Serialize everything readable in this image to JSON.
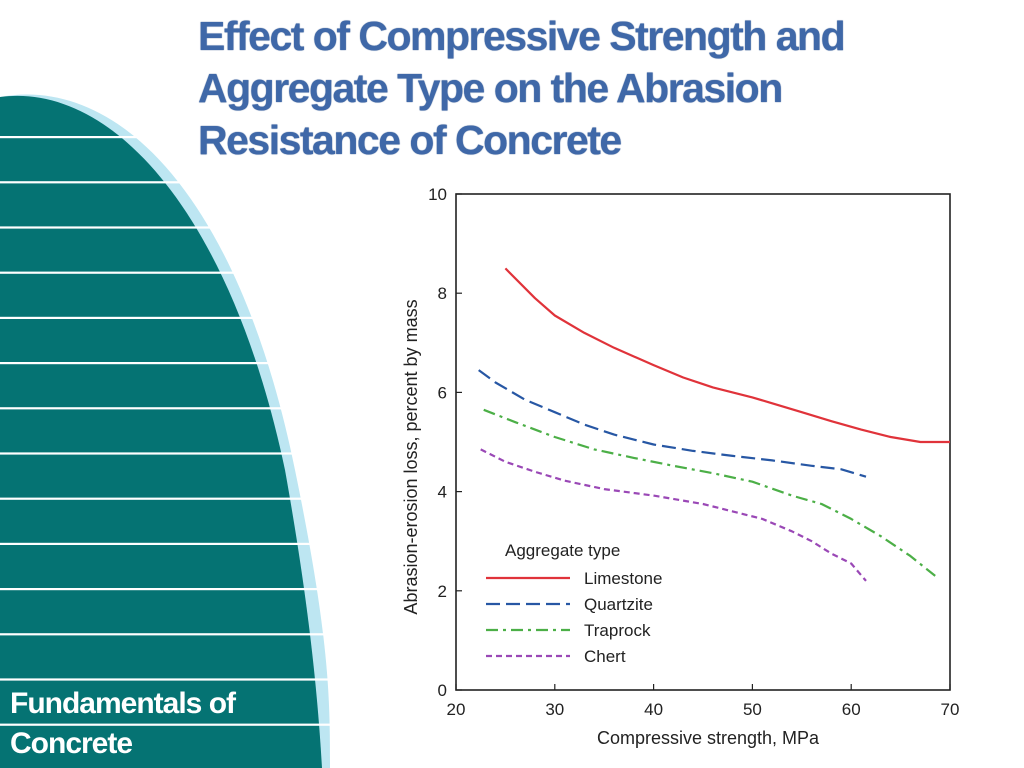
{
  "slide": {
    "title_lines": [
      "Effect of Compressive Strength and",
      "Aggregate Type on the Abrasion",
      "Resistance of Concrete"
    ],
    "footer_lines": [
      "Fundamentals of",
      "Concrete"
    ]
  },
  "colors": {
    "title": "#3f68a8",
    "panel_teal": "#057373",
    "panel_light": "#bde6f2",
    "limestone": "#e0333a",
    "quartzite": "#2757a4",
    "traprock": "#4caf47",
    "chert": "#9a48b6"
  },
  "chart_data": {
    "type": "line",
    "title": "",
    "xlabel": "Compressive strength, MPa",
    "ylabel": "Abrasion-erosion loss, percent by mass",
    "xlim": [
      20,
      70
    ],
    "ylim": [
      0,
      10
    ],
    "xticks": [
      "20",
      "30",
      "40",
      "50",
      "60",
      "70"
    ],
    "yticks": [
      "0",
      "2",
      "4",
      "6",
      "8",
      "10"
    ],
    "grid": false,
    "legend": {
      "title": "Aggregate type",
      "placement": "bottom-left"
    },
    "series": [
      {
        "name": "Limestone",
        "style": "solid",
        "color": "#e0333a",
        "points": [
          [
            25,
            8.5
          ],
          [
            28,
            7.9
          ],
          [
            30,
            7.55
          ],
          [
            33,
            7.2
          ],
          [
            36,
            6.9
          ],
          [
            40,
            6.55
          ],
          [
            43,
            6.3
          ],
          [
            46,
            6.1
          ],
          [
            50,
            5.9
          ],
          [
            52,
            5.78
          ],
          [
            55,
            5.6
          ],
          [
            58,
            5.42
          ],
          [
            61,
            5.25
          ],
          [
            64,
            5.1
          ],
          [
            67,
            5.0
          ],
          [
            70,
            5.0
          ]
        ]
      },
      {
        "name": "Quartzite",
        "style": "dashed",
        "color": "#2757a4",
        "points": [
          [
            22.3,
            6.45
          ],
          [
            24,
            6.2
          ],
          [
            27,
            5.85
          ],
          [
            30,
            5.6
          ],
          [
            33,
            5.35
          ],
          [
            36,
            5.15
          ],
          [
            40,
            4.95
          ],
          [
            44,
            4.82
          ],
          [
            48,
            4.72
          ],
          [
            52,
            4.63
          ],
          [
            56,
            4.52
          ],
          [
            59,
            4.45
          ],
          [
            61.5,
            4.3
          ]
        ]
      },
      {
        "name": "Traprock",
        "style": "dash-dot",
        "color": "#4caf47",
        "points": [
          [
            22.8,
            5.65
          ],
          [
            26,
            5.4
          ],
          [
            30,
            5.1
          ],
          [
            34,
            4.85
          ],
          [
            38,
            4.68
          ],
          [
            42,
            4.52
          ],
          [
            46,
            4.37
          ],
          [
            50,
            4.2
          ],
          [
            54,
            3.92
          ],
          [
            57,
            3.75
          ],
          [
            60,
            3.45
          ],
          [
            63,
            3.1
          ],
          [
            66,
            2.7
          ],
          [
            68.5,
            2.3
          ]
        ]
      },
      {
        "name": "Chert",
        "style": "dotted",
        "color": "#9a48b6",
        "points": [
          [
            22.5,
            4.85
          ],
          [
            25,
            4.6
          ],
          [
            28,
            4.4
          ],
          [
            31,
            4.22
          ],
          [
            35,
            4.05
          ],
          [
            40,
            3.92
          ],
          [
            45,
            3.75
          ],
          [
            48,
            3.6
          ],
          [
            51,
            3.45
          ],
          [
            54,
            3.2
          ],
          [
            56,
            3.0
          ],
          [
            58,
            2.75
          ],
          [
            60,
            2.55
          ],
          [
            61.5,
            2.2
          ]
        ]
      }
    ]
  }
}
